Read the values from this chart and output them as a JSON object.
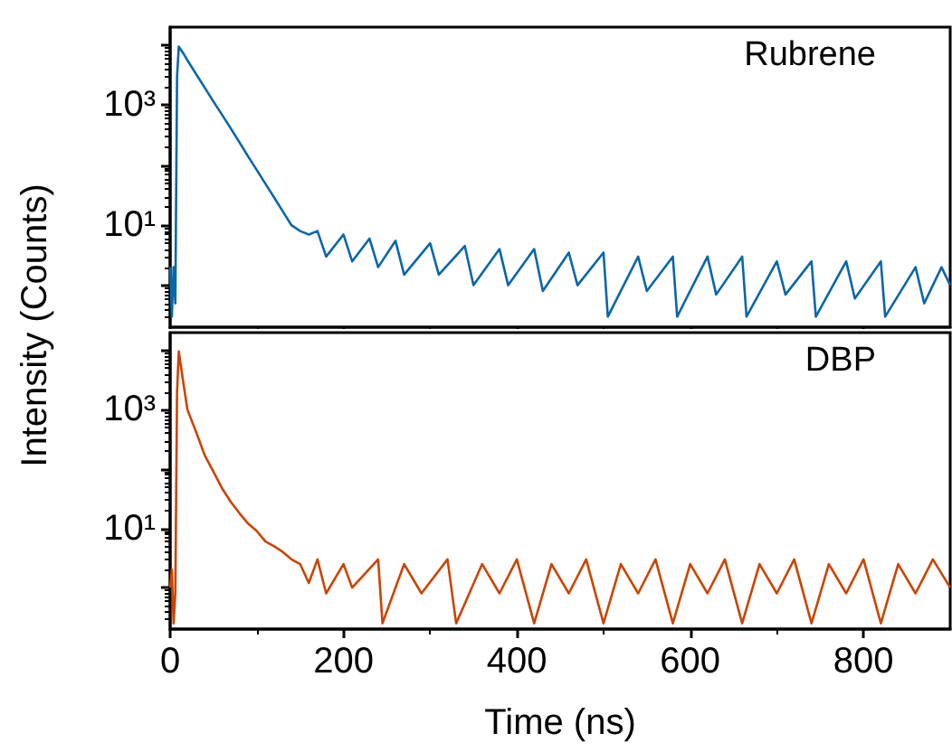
{
  "chart_data": [
    {
      "type": "line",
      "ylabel": "Intensity (Counts)",
      "log": "y",
      "tick_labels": "y",
      "grid": false,
      "legend": false,
      "marker": "none",
      "line_style": "solid",
      "xlim": [
        0,
        900
      ],
      "xticks": [
        0,
        200,
        400,
        600,
        800
      ],
      "ylim": [
        0.2,
        20000
      ],
      "yticks": [
        {
          "value": 1,
          "label": null
        },
        {
          "value": 10,
          "label": "10¹"
        },
        {
          "value": 100,
          "label": null
        },
        {
          "value": 1000,
          "label": "10³"
        },
        {
          "value": 10000,
          "label": null
        }
      ],
      "series": [
        {
          "name": "Rubrene",
          "color": "#0a67a8",
          "x": [
            0,
            2,
            4,
            6,
            8,
            10,
            15,
            20,
            30,
            40,
            50,
            60,
            70,
            80,
            90,
            100,
            110,
            120,
            130,
            140,
            150,
            160,
            170,
            180,
            200,
            210,
            230,
            240,
            260,
            270,
            300,
            310,
            340,
            350,
            380,
            390,
            420,
            430,
            460,
            470,
            500,
            505,
            540,
            550,
            580,
            585,
            620,
            630,
            660,
            665,
            700,
            710,
            740,
            745,
            780,
            790,
            820,
            825,
            860,
            870,
            890,
            900
          ],
          "values": [
            2,
            0.3,
            2,
            0.5,
            3000,
            9500,
            7400,
            5600,
            3300,
            1950,
            1150,
            690,
            410,
            240,
            140,
            83,
            49,
            29,
            17,
            10,
            8,
            7,
            8,
            3,
            7,
            2.5,
            6,
            2,
            5.5,
            1.5,
            5,
            1.5,
            4.5,
            1,
            4,
            1,
            4,
            0.8,
            3.5,
            1,
            3.5,
            0.3,
            3,
            0.8,
            3,
            0.3,
            3,
            0.7,
            3,
            0.3,
            2.5,
            0.7,
            2.5,
            0.3,
            2.5,
            0.6,
            2.5,
            0.3,
            2,
            0.5,
            2,
            1
          ]
        }
      ]
    },
    {
      "type": "line",
      "xlabel": "Time (ns)",
      "log": "y",
      "grid": false,
      "legend": false,
      "marker": "none",
      "line_style": "solid",
      "xlim": [
        0,
        900
      ],
      "xticks": [
        0,
        200,
        400,
        600,
        800
      ],
      "ylim": [
        0.2,
        20000
      ],
      "yticks": [
        {
          "value": 1,
          "label": null
        },
        {
          "value": 10,
          "label": "10¹"
        },
        {
          "value": 100,
          "label": null
        },
        {
          "value": 1000,
          "label": "10³"
        },
        {
          "value": 10000,
          "label": null
        }
      ],
      "series": [
        {
          "name": "DBP",
          "color": "#cc4400",
          "x": [
            0,
            2,
            4,
            6,
            8,
            10,
            15,
            20,
            30,
            40,
            50,
            60,
            70,
            80,
            90,
            100,
            110,
            120,
            130,
            140,
            150,
            160,
            170,
            180,
            200,
            210,
            240,
            245,
            270,
            290,
            320,
            330,
            360,
            380,
            400,
            420,
            440,
            460,
            480,
            500,
            520,
            540,
            560,
            580,
            600,
            620,
            640,
            660,
            680,
            700,
            720,
            740,
            760,
            780,
            800,
            820,
            840,
            860,
            880,
            900
          ],
          "values": [
            1,
            2,
            0.25,
            0.8,
            2000,
            9600,
            3000,
            1000,
            420,
            170,
            90,
            47,
            28,
            18,
            12,
            9,
            6,
            5,
            4,
            3,
            2.5,
            1.2,
            3,
            0.8,
            2.5,
            1,
            3,
            0.25,
            2.5,
            0.8,
            3,
            0.25,
            2.5,
            0.8,
            3,
            0.25,
            2.5,
            0.8,
            3,
            0.25,
            2.5,
            0.8,
            3,
            0.25,
            2.5,
            0.8,
            3,
            0.25,
            2.5,
            0.8,
            3,
            0.25,
            2.5,
            0.8,
            3,
            0.25,
            2.5,
            0.8,
            3,
            1
          ]
        }
      ]
    }
  ]
}
